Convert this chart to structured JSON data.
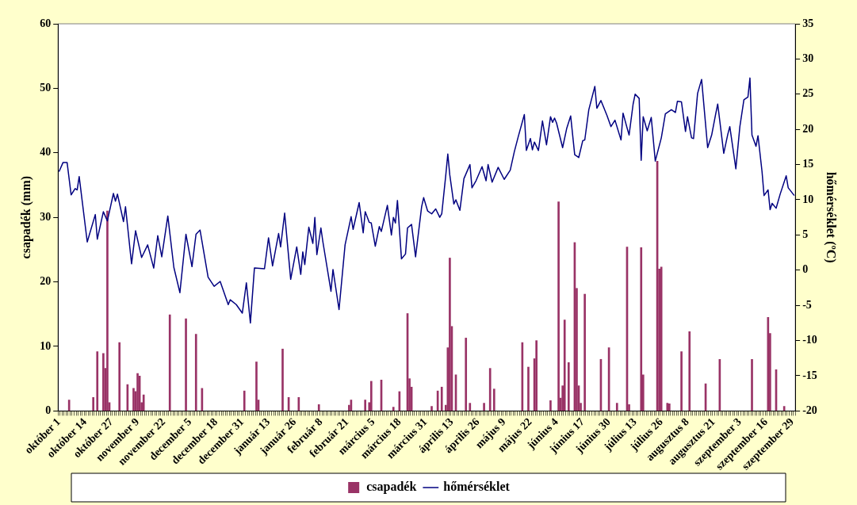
{
  "chart_data": {
    "type": "bar",
    "ylabel": "csapadék (mm)",
    "y2label": "hőmérséklet (ºC)",
    "categories": [
      "október 1",
      null,
      null,
      null,
      null,
      null,
      null,
      null,
      null,
      null,
      null,
      null,
      null,
      "október 14",
      null,
      null,
      null,
      null,
      null,
      null,
      null,
      null,
      null,
      null,
      null,
      null,
      "október 27",
      null,
      null,
      null,
      null,
      null,
      null,
      null,
      null,
      null,
      null,
      null,
      null,
      "november 9",
      null,
      null,
      null,
      null,
      null,
      null,
      null,
      null,
      null,
      null,
      null,
      null,
      "november 22",
      null,
      null,
      null,
      null,
      null,
      null,
      null,
      null,
      null,
      null,
      null,
      null,
      "december 5",
      null,
      null,
      null,
      null,
      null,
      null,
      null,
      null,
      null,
      null,
      null,
      null,
      "december 18",
      null,
      null,
      null,
      null,
      null,
      null,
      null,
      null,
      null,
      null,
      null,
      null,
      "december 31",
      null,
      null,
      null,
      null,
      null,
      null,
      null,
      null,
      null,
      null,
      null,
      null,
      "január 13",
      null,
      null,
      null,
      null,
      null,
      null,
      null,
      null,
      null,
      null,
      null,
      null,
      "január 26",
      null,
      null,
      null,
      null,
      null,
      null,
      null,
      null,
      null,
      null,
      null,
      null,
      "február 8",
      null,
      null,
      null,
      null,
      null,
      null,
      null,
      null,
      null,
      null,
      null,
      null,
      "február 21",
      null,
      null,
      null,
      null,
      null,
      null,
      null,
      null,
      null,
      null,
      null,
      null,
      "március 5",
      null,
      null,
      null,
      null,
      null,
      null,
      null,
      null,
      null,
      null,
      null,
      null,
      "március 18",
      null,
      null,
      null,
      null,
      null,
      null,
      null,
      null,
      null,
      null,
      null,
      null,
      "március 31",
      null,
      null,
      null,
      null,
      null,
      null,
      null,
      null,
      null,
      null,
      null,
      null,
      "április 13",
      null,
      null,
      null,
      null,
      null,
      null,
      null,
      null,
      null,
      null,
      null,
      null,
      "április 26",
      null,
      null,
      null,
      null,
      null,
      null,
      null,
      null,
      null,
      null,
      null,
      null,
      "május 9",
      null,
      null,
      null,
      null,
      null,
      null,
      null,
      null,
      null,
      null,
      null,
      null,
      "május 22",
      null,
      null,
      null,
      null,
      null,
      null,
      null,
      null,
      null,
      null,
      null,
      null,
      "június 4",
      null,
      null,
      null,
      null,
      null,
      null,
      null,
      null,
      null,
      null,
      null,
      null,
      "június 17",
      null,
      null,
      null,
      null,
      null,
      null,
      null,
      null,
      null,
      null,
      null,
      null,
      "június 30",
      null,
      null,
      null,
      null,
      null,
      null,
      null,
      null,
      null,
      null,
      null,
      null,
      "július 13",
      null,
      null,
      null,
      null,
      null,
      null,
      null,
      null,
      null,
      null,
      null,
      null,
      "július 26",
      null,
      null,
      null,
      null,
      null,
      null,
      null,
      null,
      null,
      null,
      null,
      null,
      "augusztus 8",
      null,
      null,
      null,
      null,
      null,
      null,
      null,
      null,
      null,
      null,
      null,
      null,
      "augusztus 21",
      null,
      null,
      null,
      null,
      null,
      null,
      null,
      null,
      null,
      null,
      null,
      null,
      "szeptember 3",
      null,
      null,
      null,
      null,
      null,
      null,
      null,
      null,
      null,
      null,
      null,
      null,
      "szeptember 16",
      null,
      null,
      null,
      null,
      null,
      null,
      null,
      null,
      null,
      null,
      null,
      null,
      "szeptember 29",
      null
    ],
    "ylim": [
      0,
      60
    ],
    "yticks": [
      0,
      10,
      20,
      30,
      40,
      50,
      60
    ],
    "y2lim": [
      -20,
      35
    ],
    "y2ticks": [
      -20,
      -15,
      -10,
      -5,
      0,
      5,
      10,
      15,
      20,
      25,
      30,
      35
    ],
    "grid": false,
    "legend": "bottom",
    "marker": "none",
    "line_style": "solid",
    "series": [
      {
        "name": "csapadék",
        "color": "#993366",
        "values": [
          null,
          null,
          null,
          null,
          null,
          1.7,
          null,
          null,
          null,
          null,
          null,
          null,
          null,
          null,
          null,
          null,
          null,
          2.1,
          null,
          9.2,
          null,
          null,
          8.9,
          6.6,
          31.0,
          1.3,
          null,
          null,
          null,
          null,
          10.6,
          null,
          null,
          null,
          4.1,
          null,
          null,
          3.5,
          3.0,
          5.8,
          5.4,
          1.3,
          2.5,
          null,
          null,
          null,
          null,
          null,
          null,
          null,
          null,
          null,
          null,
          null,
          null,
          14.9,
          null,
          null,
          null,
          null,
          null,
          null,
          null,
          14.3,
          null,
          null,
          null,
          null,
          11.9,
          null,
          null,
          3.5,
          null,
          null,
          null,
          null,
          null,
          null,
          null,
          null,
          null,
          null,
          null,
          null,
          null,
          null,
          null,
          null,
          null,
          null,
          null,
          null,
          3.1,
          null,
          null,
          null,
          null,
          null,
          7.6,
          1.7,
          null,
          null,
          null,
          null,
          null,
          null,
          null,
          null,
          null,
          null,
          null,
          9.6,
          null,
          null,
          2.1,
          null,
          null,
          null,
          null,
          2.1,
          null,
          null,
          null,
          null,
          null,
          null,
          null,
          null,
          null,
          1.0,
          null,
          null,
          null,
          null,
          null,
          null,
          null,
          null,
          null,
          null,
          null,
          null,
          null,
          null,
          0.9,
          1.7,
          null,
          null,
          null,
          null,
          null,
          null,
          1.7,
          null,
          1.3,
          4.6,
          null,
          null,
          null,
          null,
          4.8,
          null,
          null,
          null,
          null,
          null,
          0.6,
          null,
          null,
          3.0,
          null,
          null,
          null,
          15.1,
          5.0,
          3.7,
          null,
          null,
          null,
          null,
          null,
          null,
          null,
          null,
          null,
          0.7,
          null,
          null,
          3.1,
          null,
          3.7,
          null,
          0.9,
          9.8,
          23.7,
          13.1,
          null,
          5.6,
          null,
          null,
          null,
          null,
          11.3,
          null,
          1.2,
          null,
          null,
          null,
          null,
          null,
          null,
          1.2,
          null,
          null,
          6.6,
          null,
          3.4,
          null,
          null,
          null,
          null,
          null,
          null,
          null,
          null,
          null,
          null,
          null,
          null,
          null,
          10.6,
          null,
          null,
          6.8,
          null,
          null,
          8.1,
          10.9,
          null,
          null,
          null,
          null,
          null,
          null,
          1.6,
          null,
          null,
          null,
          32.4,
          2.0,
          3.9,
          14.1,
          null,
          7.5,
          null,
          null,
          26.1,
          19.0,
          3.9,
          1.2,
          null,
          18.1,
          null,
          null,
          null,
          null,
          null,
          null,
          null,
          8.0,
          null,
          null,
          null,
          9.8,
          null,
          null,
          null,
          1.2,
          null,
          null,
          null,
          null,
          25.4,
          1.0,
          null,
          null,
          null,
          null,
          null,
          25.3,
          5.6,
          null,
          null,
          null,
          null,
          null,
          null,
          38.7,
          22.0,
          22.3,
          null,
          null,
          1.2,
          1.1,
          null,
          null,
          null,
          null,
          null,
          9.2,
          null,
          null,
          null,
          12.3,
          null,
          null,
          null,
          null,
          null,
          null,
          null,
          4.2,
          null,
          null,
          null,
          null,
          null,
          null,
          8.0,
          null,
          null,
          null,
          null,
          null,
          null,
          null,
          null,
          null,
          null,
          null,
          null,
          null,
          null,
          null,
          8.0,
          null,
          null,
          null,
          null,
          null,
          null,
          null,
          14.5,
          12.0,
          null,
          null,
          6.4,
          null,
          null,
          null,
          0.7,
          null,
          null,
          null,
          null,
          null
        ]
      },
      {
        "name": "hőmérséklet",
        "type": "line",
        "axis": "y2",
        "color": "#000080",
        "values": [
          14.0,
          null,
          15.3,
          null,
          15.3,
          null,
          10.7,
          null,
          11.6,
          11.4,
          13.3,
          null,
          null,
          null,
          4.0,
          null,
          null,
          null,
          7.9,
          4.4,
          null,
          null,
          8.3,
          null,
          7.0,
          null,
          null,
          10.9,
          9.8,
          10.8,
          null,
          null,
          6.9,
          9.0,
          null,
          null,
          0.9,
          null,
          5.6,
          null,
          null,
          1.8,
          null,
          null,
          3.6,
          null,
          null,
          0.3,
          null,
          4.9,
          null,
          1.9,
          null,
          null,
          7.7,
          null,
          null,
          0.4,
          null,
          null,
          -3.2,
          null,
          null,
          5.1,
          null,
          null,
          0.5,
          null,
          5.1,
          null,
          5.7,
          null,
          null,
          null,
          -1.0,
          null,
          null,
          -2.3,
          null,
          null,
          -1.6,
          null,
          null,
          null,
          -4.9,
          -4.2,
          null,
          null,
          -4.9,
          null,
          null,
          -6.1,
          null,
          -1.8,
          null,
          -7.5,
          null,
          0.3,
          null,
          null,
          null,
          null,
          0.2,
          null,
          4.6,
          null,
          0.6,
          null,
          null,
          5.2,
          3.3,
          null,
          8.1,
          null,
          null,
          -1.3,
          null,
          null,
          3.3,
          null,
          -0.6,
          2.6,
          0.8,
          null,
          6.1,
          null,
          3.8,
          7.5,
          2.2,
          null,
          6.0,
          4.0,
          null,
          null,
          null,
          -3.0,
          0.1,
          null,
          null,
          -5.6,
          null,
          null,
          3.6,
          null,
          null,
          7.6,
          5.8,
          null,
          null,
          9.6,
          null,
          5.3,
          8.3,
          null,
          6.8,
          6.7,
          null,
          3.4,
          null,
          6.2,
          5.5,
          null,
          null,
          9.2,
          null,
          5.0,
          7.5,
          6.7,
          9.9,
          null,
          1.6,
          null,
          2.3,
          6.0,
          null,
          6.5,
          null,
          1.9,
          null,
          null,
          9.0,
          10.3,
          null,
          8.4,
          null,
          8.0,
          null,
          8.7,
          null,
          7.5,
          8.0,
          null,
          13.5,
          16.5,
          13.5,
          null,
          9.4,
          10.0,
          null,
          8.5,
          null,
          13.0,
          null,
          null,
          15.0,
          11.7,
          null,
          12.7,
          null,
          null,
          14.7,
          null,
          12.7,
          15.0,
          null,
          12.5,
          null,
          null,
          14.6,
          null,
          null,
          12.9,
          null,
          null,
          14.2,
          null,
          16.8,
          null,
          19.0,
          null,
          null,
          22.1,
          17.0,
          null,
          18.7,
          17.1,
          18.2,
          null,
          17.0,
          null,
          21.2,
          null,
          17.8,
          null,
          21.8,
          21.0,
          21.6,
          20.9,
          null,
          null,
          17.4,
          null,
          20.1,
          null,
          21.9,
          null,
          16.4,
          null,
          16.0,
          null,
          18.4,
          18.5,
          null,
          22.8,
          null,
          null,
          26.1,
          23.0,
          null,
          24.1,
          null,
          null,
          22.0,
          null,
          20.4,
          null,
          21.3,
          null,
          null,
          18.5,
          22.3,
          null,
          20.2,
          19.2,
          null,
          23.6,
          25.0,
          null,
          24.4,
          15.6,
          21.8,
          null,
          19.8,
          null,
          21.7,
          null,
          15.5,
          null,
          null,
          18.8,
          null,
          22.2,
          22.4,
          null,
          22.8,
          null,
          22.4,
          24.0,
          null,
          23.9,
          null,
          19.7,
          21.8,
          null,
          18.8,
          18.7,
          null,
          25.1,
          null,
          27.1,
          null,
          null,
          17.4,
          null,
          19.2,
          null,
          22.2,
          23.6,
          null,
          null,
          16.6,
          null,
          19.3,
          20.4,
          null,
          null,
          14.4,
          null,
          20.4,
          null,
          24.2,
          null,
          24.6,
          27.3,
          19.2,
          null,
          17.6,
          19.1,
          null,
          14.0,
          10.6,
          null,
          11.4,
          8.6,
          9.5,
          null,
          8.8,
          null,
          10.8,
          null,
          null,
          13.4,
          11.7,
          null,
          null,
          10.6
        ]
      }
    ]
  }
}
